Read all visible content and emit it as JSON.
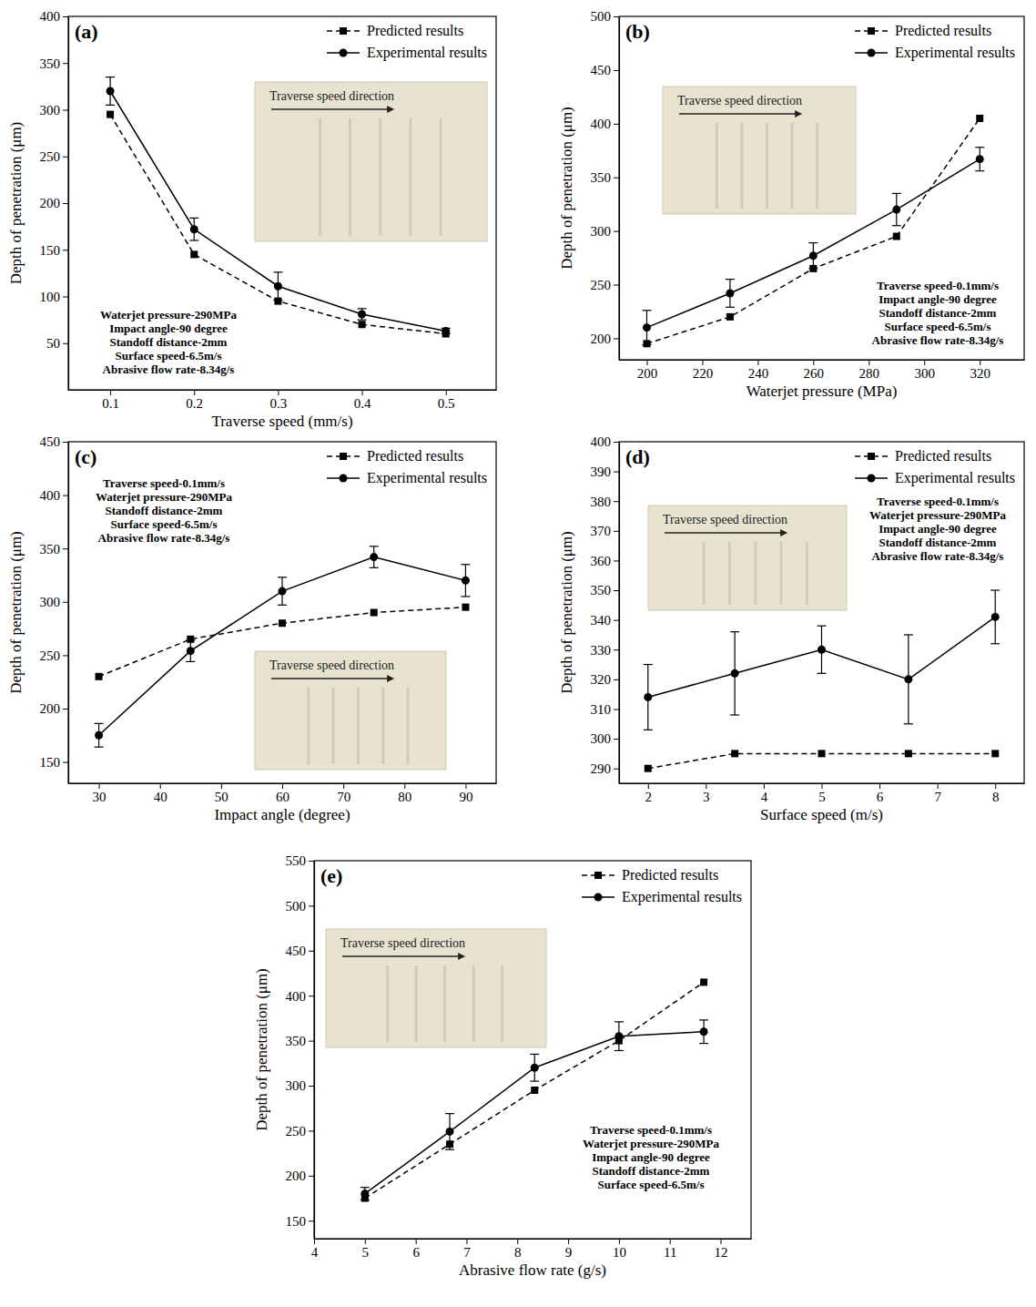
{
  "chart_data": [
    {
      "type": "line",
      "title": "(a)",
      "x_label": "Traverse speed (mm/s)",
      "y_label": "Depth of penetration (μm)",
      "x": [
        0.1,
        0.2,
        0.3,
        0.4,
        0.5
      ],
      "xlim": [
        0.05,
        0.56
      ],
      "xticks": [
        0.1,
        0.2,
        0.3,
        0.4,
        0.5
      ],
      "ylim": [
        0,
        400
      ],
      "yticks": [
        50,
        100,
        150,
        200,
        250,
        300,
        350,
        400
      ],
      "legend": "top-right",
      "series": [
        {
          "name": "Predicted results",
          "color": "#000000",
          "marker": "square",
          "line_style": "dashed",
          "values": [
            295,
            145,
            95,
            70,
            60
          ]
        },
        {
          "name": "Experimental results",
          "color": "#000000",
          "marker": "circle",
          "line_style": "solid",
          "values": [
            320,
            172,
            111,
            81,
            63
          ],
          "errors": [
            15,
            12,
            15,
            6,
            3
          ]
        }
      ],
      "annotations": [
        "Waterjet pressure-290MPa",
        "Impact angle-90 degree",
        "Standoff distance-2mm",
        "Surface speed-6.5m/s",
        "Abrasive flow rate-8.34g/s"
      ],
      "inset_caption": "Traverse speed direction"
    },
    {
      "type": "line",
      "title": "(b)",
      "x_label": "Waterjet pressure (MPa)",
      "y_label": "Depth of penetration (μm)",
      "x": [
        200,
        230,
        260,
        290,
        320
      ],
      "xlim": [
        190,
        336
      ],
      "xticks": [
        200,
        220,
        240,
        260,
        280,
        300,
        320
      ],
      "ylim": [
        180,
        500
      ],
      "yticks": [
        200,
        250,
        300,
        350,
        400,
        450,
        500
      ],
      "legend": "top-right",
      "series": [
        {
          "name": "Predicted results",
          "color": "#000000",
          "marker": "square",
          "line_style": "dashed",
          "values": [
            195,
            220,
            265,
            295,
            405
          ]
        },
        {
          "name": "Experimental results",
          "color": "#000000",
          "marker": "circle",
          "line_style": "solid",
          "values": [
            210,
            242,
            277,
            320,
            367
          ],
          "errors": [
            16,
            13,
            12,
            15,
            11
          ]
        }
      ],
      "annotations": [
        "Traverse speed-0.1mm/s",
        "Impact angle-90 degree",
        "Standoff distance-2mm",
        "Surface speed-6.5m/s",
        "Abrasive flow rate-8.34g/s"
      ],
      "inset_caption": "Traverse speed direction"
    },
    {
      "type": "line",
      "title": "(c)",
      "x_label": "Impact angle (degree)",
      "y_label": "Depth of penetration (μm)",
      "x": [
        30,
        45,
        60,
        75,
        90
      ],
      "xlim": [
        25,
        95
      ],
      "xticks": [
        30,
        40,
        50,
        60,
        70,
        80,
        90
      ],
      "ylim": [
        130,
        450
      ],
      "yticks": [
        150,
        200,
        250,
        300,
        350,
        400,
        450
      ],
      "legend": "top-right",
      "series": [
        {
          "name": "Predicted results",
          "color": "#000000",
          "marker": "square",
          "line_style": "dashed",
          "values": [
            230,
            265,
            280,
            290,
            295
          ]
        },
        {
          "name": "Experimental results",
          "color": "#000000",
          "marker": "circle",
          "line_style": "solid",
          "values": [
            175,
            254,
            310,
            342,
            320
          ],
          "errors": [
            11,
            10,
            13,
            10,
            15
          ]
        }
      ],
      "annotations": [
        "Traverse speed-0.1mm/s",
        "Waterjet pressure-290MPa",
        "Standoff distance-2mm",
        "Surface speed-6.5m/s",
        "Abrasive flow rate-8.34g/s"
      ],
      "inset_caption": "Traverse speed direction"
    },
    {
      "type": "line",
      "title": "(d)",
      "x_label": "Surface speed (m/s)",
      "y_label": "Depth of penetration (μm)",
      "x": [
        2,
        3.5,
        5,
        6.5,
        8
      ],
      "xlim": [
        1.5,
        8.5
      ],
      "xticks": [
        2,
        3,
        4,
        5,
        6,
        7,
        8
      ],
      "ylim": [
        285,
        400
      ],
      "yticks": [
        290,
        300,
        310,
        320,
        330,
        340,
        350,
        360,
        370,
        380,
        390,
        400
      ],
      "legend": "top-right",
      "series": [
        {
          "name": "Predicted results",
          "color": "#000000",
          "marker": "square",
          "line_style": "dashed",
          "values": [
            290,
            295,
            295,
            295,
            295
          ]
        },
        {
          "name": "Experimental results",
          "color": "#000000",
          "marker": "circle",
          "line_style": "solid",
          "values": [
            314,
            322,
            330,
            320,
            341
          ],
          "errors": [
            11,
            14,
            8,
            15,
            9
          ]
        }
      ],
      "annotations": [
        "Traverse speed-0.1mm/s",
        "Waterjet pressure-290MPa",
        "Impact angle-90 degree",
        "Standoff distance-2mm",
        "Abrasive flow rate-8.34g/s"
      ],
      "inset_caption": "Traverse speed direction"
    },
    {
      "type": "line",
      "title": "(e)",
      "x_label": "Abrasive flow rate (g/s)",
      "y_label": "Depth of penetration (μm)",
      "x": [
        5,
        6.67,
        8.34,
        10,
        11.67
      ],
      "xlim": [
        4,
        12.6
      ],
      "xticks": [
        4,
        5,
        6,
        7,
        8,
        9,
        10,
        11,
        12
      ],
      "ylim": [
        130,
        550
      ],
      "yticks": [
        150,
        200,
        250,
        300,
        350,
        400,
        450,
        500,
        550
      ],
      "legend": "top-right",
      "series": [
        {
          "name": "Predicted results",
          "color": "#000000",
          "marker": "square",
          "line_style": "dashed",
          "values": [
            175,
            235,
            295,
            350,
            415
          ]
        },
        {
          "name": "Experimental results",
          "color": "#000000",
          "marker": "circle",
          "line_style": "solid",
          "values": [
            180,
            249,
            320,
            355,
            360
          ],
          "errors": [
            7,
            20,
            15,
            16,
            13
          ]
        }
      ],
      "annotations": [
        "Traverse speed-0.1mm/s",
        "Waterjet pressure-290MPa",
        "Impact angle-90 degree",
        "Standoff distance-2mm",
        "Surface speed-6.5m/s"
      ],
      "inset_caption": "Traverse speed direction"
    }
  ]
}
